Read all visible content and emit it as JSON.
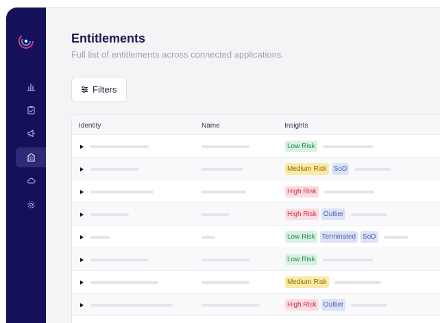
{
  "page": {
    "title": "Entitlements",
    "subtitle": "Full list of entitlements across connected applications."
  },
  "toolbar": {
    "filters_label": "Filters"
  },
  "table": {
    "columns": [
      "Identity",
      "Name",
      "Insights"
    ],
    "rows": [
      {
        "badges": [
          "Low Risk"
        ]
      },
      {
        "badges": [
          "Medium Risk",
          "SoD"
        ]
      },
      {
        "badges": [
          "High Risk"
        ]
      },
      {
        "badges": [
          "High Risk",
          "Outlier"
        ]
      },
      {
        "badges": [
          "Low Risk",
          "Terminated",
          "SoD"
        ]
      },
      {
        "badges": [
          "Low Risk"
        ]
      },
      {
        "badges": [
          "Medium Risk"
        ]
      },
      {
        "badges": [
          "High Risk",
          "Outlier"
        ]
      }
    ]
  },
  "sidebar": {
    "items": [
      {
        "icon": "bar-chart-icon",
        "active": false
      },
      {
        "icon": "clipboard-check-icon",
        "active": false
      },
      {
        "icon": "megaphone-icon",
        "active": false
      },
      {
        "icon": "building-icon",
        "active": true
      },
      {
        "icon": "cloud-icon",
        "active": false
      },
      {
        "icon": "gear-icon",
        "active": false
      }
    ]
  },
  "colors": {
    "sidebar_bg": "#15105a",
    "low_risk": "#1f8a4c",
    "medium_risk": "#8a6b12",
    "high_risk": "#c3304a",
    "tag_blue": "#4c5fb5"
  }
}
